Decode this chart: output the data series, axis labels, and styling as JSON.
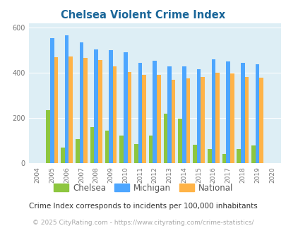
{
  "title": "Chelsea Violent Crime Index",
  "years": [
    2004,
    2005,
    2006,
    2007,
    2008,
    2009,
    2010,
    2011,
    2012,
    2013,
    2014,
    2015,
    2016,
    2017,
    2018,
    2019,
    2020
  ],
  "chelsea": [
    0,
    235,
    68,
    107,
    160,
    145,
    122,
    85,
    122,
    218,
    198,
    82,
    62,
    42,
    62,
    78,
    0
  ],
  "michigan": [
    0,
    553,
    567,
    537,
    503,
    500,
    492,
    445,
    455,
    430,
    430,
    415,
    460,
    450,
    445,
    437,
    0
  ],
  "national": [
    0,
    469,
    474,
    467,
    457,
    430,
    405,
    390,
    391,
    368,
    376,
    383,
    400,
    397,
    383,
    379,
    0
  ],
  "bar_width": 0.27,
  "ylim": [
    0,
    620
  ],
  "yticks": [
    0,
    200,
    400,
    600
  ],
  "color_chelsea": "#8dc63f",
  "color_michigan": "#4da6ff",
  "color_national": "#ffb347",
  "bg_color": "#ddeef5",
  "grid_color": "#ffffff",
  "subtitle": "Crime Index corresponds to incidents per 100,000 inhabitants",
  "footer": "© 2025 CityRating.com - https://www.cityrating.com/crime-statistics/",
  "title_color": "#1a6699",
  "subtitle_color": "#333333",
  "footer_color": "#aaaaaa",
  "legend_label_color": "#555555"
}
